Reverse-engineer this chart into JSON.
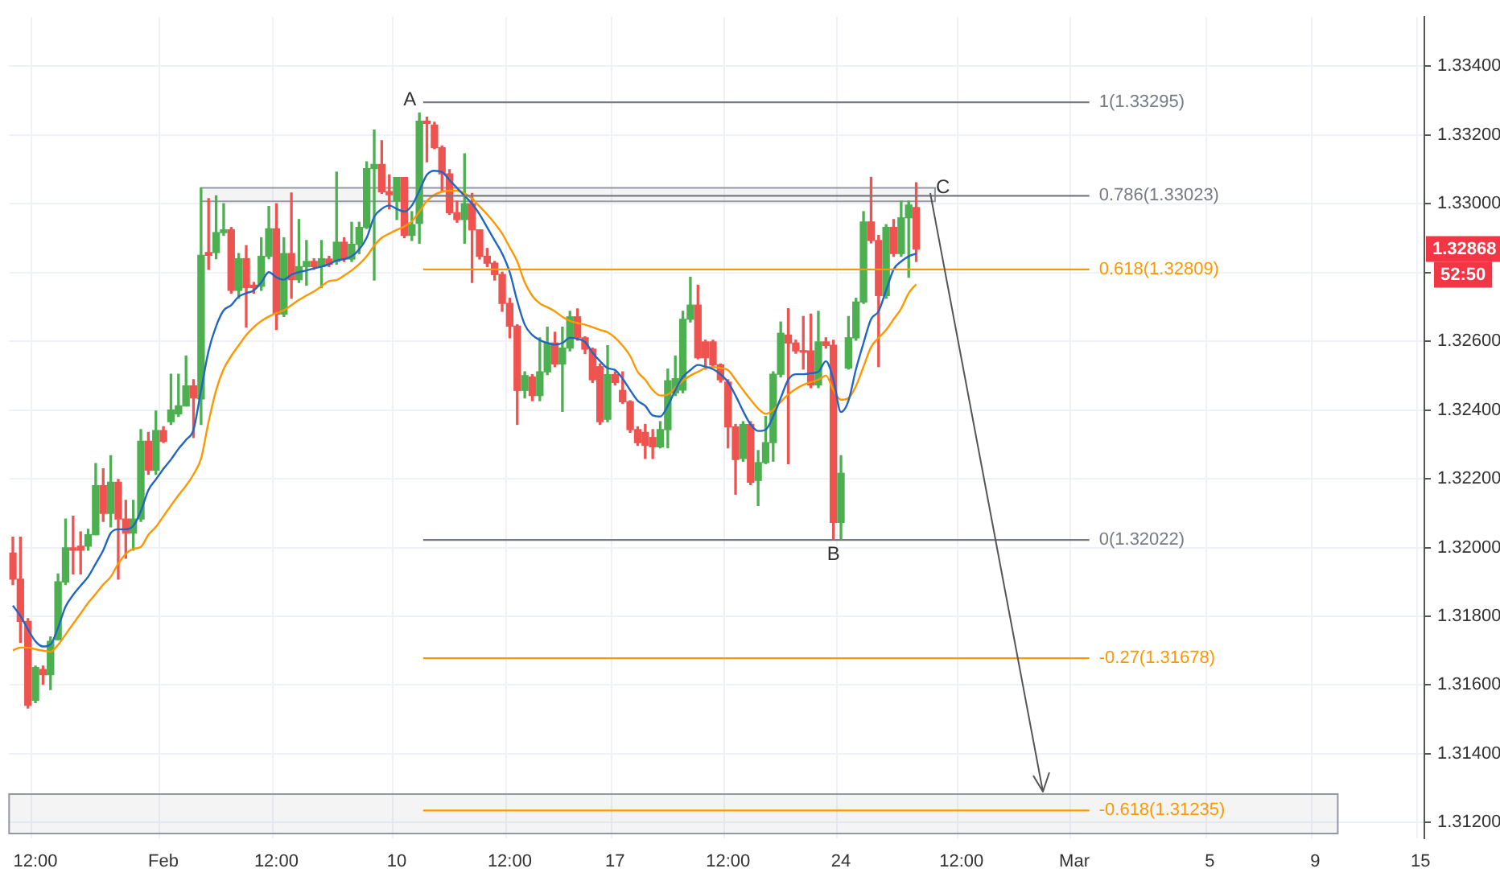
{
  "chart_data": {
    "type": "candlestick",
    "categories": [
      null,
      null,
      null,
      "12:00",
      null,
      null,
      null,
      null,
      null,
      null,
      null,
      null,
      null,
      null,
      null,
      null,
      null,
      null,
      null,
      null,
      "Feb",
      null,
      null,
      null,
      null,
      null,
      null,
      null,
      null,
      null,
      null,
      null,
      null,
      null,
      null,
      "12:00",
      null,
      null,
      null,
      null,
      null,
      null,
      null,
      null,
      null,
      null,
      null,
      null,
      null,
      null,
      null,
      "10",
      null,
      null,
      null,
      null,
      null,
      null,
      null,
      null,
      null,
      null,
      null,
      null,
      null,
      null,
      "12:00",
      null,
      null,
      null,
      null,
      null,
      null,
      null,
      null,
      null,
      null,
      null,
      null,
      null,
      "17",
      null,
      null,
      null,
      null,
      null,
      null,
      null,
      null,
      null,
      null,
      null,
      null,
      null,
      null,
      "12:00",
      null,
      null,
      null,
      null,
      null,
      null,
      null,
      null,
      null,
      null,
      null,
      null,
      null,
      null,
      "24",
      null,
      null,
      null,
      null,
      null,
      null,
      null,
      null,
      null,
      null,
      null,
      null,
      null,
      null,
      null,
      "12:00",
      null,
      null,
      null,
      null,
      null,
      null,
      null,
      null,
      null,
      null,
      null,
      null,
      null,
      null,
      "Mar",
      null,
      null,
      null,
      null,
      null,
      null,
      null,
      null,
      null,
      null,
      null,
      null,
      null,
      null,
      null,
      null,
      null,
      "5",
      null,
      null,
      null,
      null,
      null,
      null,
      null,
      null,
      null,
      null,
      null,
      null,
      null,
      "9",
      null,
      null,
      null,
      null,
      null,
      null,
      null,
      null,
      null,
      null,
      null,
      null,
      null,
      "15"
    ],
    "ohlc": [
      [
        1.31984,
        1.3203,
        1.31892,
        1.31908
      ],
      [
        1.31908,
        1.3203,
        1.31724,
        1.31785
      ],
      [
        1.31785,
        1.31793,
        1.31533,
        1.31541
      ],
      [
        1.31556,
        1.31655,
        1.31549,
        1.31651
      ],
      [
        1.31645,
        1.31655,
        1.31602,
        1.3163
      ],
      [
        1.3163,
        1.3174,
        1.31587,
        1.31727
      ],
      [
        1.31732,
        1.31923,
        1.31732,
        1.319
      ],
      [
        1.319,
        1.32083,
        1.31892,
        1.31999
      ],
      [
        1.31999,
        1.32091,
        1.31923,
        1.31992
      ],
      [
        1.32004,
        1.32045,
        1.31923,
        1.31992
      ],
      [
        1.32004,
        1.32053,
        1.31992,
        1.32037
      ],
      [
        1.32037,
        1.32244,
        1.32037,
        1.3218
      ],
      [
        1.3218,
        1.32229,
        1.32076,
        1.32099
      ],
      [
        1.32099,
        1.32267,
        1.3206,
        1.3219
      ],
      [
        1.3219,
        1.32198,
        1.31908,
        1.32083
      ],
      [
        1.32083,
        1.32137,
        1.31969,
        1.32042
      ],
      [
        1.32042,
        1.32137,
        1.31992,
        1.32083
      ],
      [
        1.32083,
        1.32343,
        1.32076,
        1.32309
      ],
      [
        1.32309,
        1.32335,
        1.32213,
        1.32225
      ],
      [
        1.32225,
        1.32397,
        1.32213,
        1.3234
      ],
      [
        1.3234,
        1.32351,
        1.32305,
        1.32309
      ],
      [
        1.32366,
        1.32504,
        1.32358,
        1.324
      ],
      [
        1.32389,
        1.32504,
        1.32381,
        1.32412
      ],
      [
        1.32412,
        1.32557,
        1.32412,
        1.3247
      ],
      [
        1.3247,
        1.32488,
        1.3232,
        1.32435
      ],
      [
        1.32432,
        1.33046,
        1.32358,
        1.3285
      ],
      [
        1.32858,
        1.33015,
        1.32809,
        1.3285
      ],
      [
        1.32858,
        1.33023,
        1.3284,
        1.32916
      ],
      [
        1.32916,
        1.33,
        1.32908,
        1.32924
      ],
      [
        1.32924,
        1.32931,
        1.3274,
        1.32748
      ],
      [
        1.32748,
        1.32855,
        1.32725,
        1.3284
      ],
      [
        1.3284,
        1.32878,
        1.32641,
        1.32756
      ],
      [
        1.32763,
        1.32771,
        1.3274,
        1.32756
      ],
      [
        1.3276,
        1.32901,
        1.32748,
        1.32847
      ],
      [
        1.32847,
        1.32992,
        1.3284,
        1.32927
      ],
      [
        1.32927,
        1.33,
        1.32634,
        1.32679
      ],
      [
        1.32679,
        1.32901,
        1.32672,
        1.32855
      ],
      [
        1.32855,
        1.33031,
        1.32725,
        1.32779
      ],
      [
        1.32779,
        1.32954,
        1.32771,
        1.32817
      ],
      [
        1.32817,
        1.32893,
        1.32763,
        1.32832
      ],
      [
        1.32832,
        1.3284,
        1.32809,
        1.32817
      ],
      [
        1.32817,
        1.32893,
        1.32756,
        1.3284
      ],
      [
        1.32839,
        1.32847,
        1.32817,
        1.32824
      ],
      [
        1.32832,
        1.33092,
        1.32824,
        1.32888
      ],
      [
        1.32888,
        1.32901,
        1.32832,
        1.32839
      ],
      [
        1.32839,
        1.32946,
        1.32832,
        1.32882
      ],
      [
        1.32882,
        1.32946,
        1.32855,
        1.32931
      ],
      [
        1.32931,
        1.33122,
        1.32928,
        1.33102
      ],
      [
        1.33102,
        1.33214,
        1.32778,
        1.33114
      ],
      [
        1.33114,
        1.33183,
        1.3303,
        1.33035
      ],
      [
        1.33035,
        1.33084,
        1.32985,
        1.33026
      ],
      [
        1.33008,
        1.33076,
        1.32954,
        1.33076
      ],
      [
        1.33076,
        1.33076,
        1.32901,
        1.32908
      ],
      [
        1.32908,
        1.32977,
        1.32893,
        1.32939
      ],
      [
        1.32943,
        1.33264,
        1.32885,
        1.3324
      ],
      [
        1.3324,
        1.33252,
        1.33122,
        1.33234
      ],
      [
        1.33229,
        1.33237,
        1.3316,
        1.33163
      ],
      [
        1.33163,
        1.33168,
        1.33038,
        1.33087
      ],
      [
        1.33087,
        1.33099,
        1.32969,
        1.32974
      ],
      [
        1.32974,
        1.33008,
        1.32946,
        1.32954
      ],
      [
        1.32954,
        1.33145,
        1.32885,
        1.33
      ],
      [
        1.33,
        1.3303,
        1.32771,
        1.32924
      ],
      [
        1.32924,
        1.32924,
        1.32839,
        1.32847
      ],
      [
        1.32847,
        1.3287,
        1.32817,
        1.32827
      ],
      [
        1.32827,
        1.32832,
        1.32778,
        1.32794
      ],
      [
        1.32794,
        1.32801,
        1.32687,
        1.3271
      ],
      [
        1.3271,
        1.32725,
        1.3261,
        1.32644
      ],
      [
        1.32644,
        1.32648,
        1.32358,
        1.32457
      ],
      [
        1.32457,
        1.32511,
        1.32435,
        1.325
      ],
      [
        1.32496,
        1.32503,
        1.32427,
        1.32442
      ],
      [
        1.32442,
        1.3261,
        1.32427,
        1.32511
      ],
      [
        1.32511,
        1.32641,
        1.32503,
        1.32595
      ],
      [
        1.32595,
        1.32626,
        1.32526,
        1.32534
      ],
      [
        1.32534,
        1.32641,
        1.32396,
        1.3258
      ],
      [
        1.3258,
        1.32687,
        1.32572,
        1.32671
      ],
      [
        1.32671,
        1.32694,
        1.32603,
        1.3261
      ],
      [
        1.3261,
        1.32613,
        1.32564,
        1.32577
      ],
      [
        1.32577,
        1.3258,
        1.3248,
        1.32488
      ],
      [
        1.32526,
        1.32534,
        1.32358,
        1.32366
      ],
      [
        1.32373,
        1.32587,
        1.32366,
        1.32503
      ],
      [
        1.32503,
        1.32511,
        1.32473,
        1.3248
      ],
      [
        1.32457,
        1.32511,
        1.32419,
        1.32424
      ],
      [
        1.32424,
        1.32427,
        1.32335,
        1.32343
      ],
      [
        1.32343,
        1.32351,
        1.32297,
        1.32305
      ],
      [
        1.32335,
        1.32358,
        1.32259,
        1.32297
      ],
      [
        1.3232,
        1.32343,
        1.32259,
        1.32293
      ],
      [
        1.32293,
        1.32366,
        1.3229,
        1.32343
      ],
      [
        1.32343,
        1.32519,
        1.3229,
        1.32485
      ],
      [
        1.3245,
        1.32557,
        1.32442,
        1.32491
      ],
      [
        1.32458,
        1.32687,
        1.3245,
        1.32664
      ],
      [
        1.32664,
        1.32786,
        1.32656,
        1.32705
      ],
      [
        1.32705,
        1.32763,
        1.32549,
        1.32552
      ],
      [
        1.32598,
        1.32603,
        1.32519,
        1.32552
      ],
      [
        1.32598,
        1.32603,
        1.32526,
        1.32531
      ],
      [
        1.32531,
        1.32534,
        1.32481,
        1.32488
      ],
      [
        1.32481,
        1.32488,
        1.3229,
        1.32351
      ],
      [
        1.32351,
        1.32358,
        1.32155,
        1.32256
      ],
      [
        1.32259,
        1.32366,
        1.32251,
        1.32358
      ],
      [
        1.32358,
        1.32366,
        1.32183,
        1.3219
      ],
      [
        1.32195,
        1.32282,
        1.32122,
        1.32247
      ],
      [
        1.32247,
        1.32381,
        1.32244,
        1.32305
      ],
      [
        1.32305,
        1.32511,
        1.32251,
        1.32504
      ],
      [
        1.32504,
        1.32656,
        1.32496,
        1.32623
      ],
      [
        1.32618,
        1.32695,
        1.32244,
        1.32595
      ],
      [
        1.32595,
        1.32603,
        1.32565,
        1.32572
      ],
      [
        1.32572,
        1.32672,
        1.32519,
        1.32568
      ],
      [
        1.32572,
        1.32679,
        1.32465,
        1.32473
      ],
      [
        1.32473,
        1.32687,
        1.32465,
        1.32598
      ],
      [
        1.32598,
        1.3261,
        1.3258,
        1.32588
      ],
      [
        1.32588,
        1.32603,
        1.32022,
        1.32073
      ],
      [
        1.32073,
        1.32267,
        1.32022,
        1.32216
      ],
      [
        1.32522,
        1.32672,
        1.32519,
        1.3261
      ],
      [
        1.3261,
        1.32725,
        1.32603,
        1.32714
      ],
      [
        1.32714,
        1.32977,
        1.3271,
        1.32947
      ],
      [
        1.32947,
        1.33077,
        1.32886,
        1.32893
      ],
      [
        1.32893,
        1.32908,
        1.32526,
        1.32733
      ],
      [
        1.32733,
        1.32939,
        1.32725,
        1.32931
      ],
      [
        1.32931,
        1.32954,
        1.32847,
        1.32855
      ],
      [
        1.32855,
        1.33008,
        1.32847,
        1.32959
      ],
      [
        1.32959,
        1.33008,
        1.32786,
        1.32996
      ],
      [
        1.32989,
        1.33061,
        1.32832,
        1.32868
      ],
      null,
      null,
      null,
      null,
      null,
      null,
      null,
      null,
      null,
      null,
      null,
      null,
      null,
      null,
      null,
      null,
      null,
      null,
      null,
      null,
      null,
      null,
      null,
      null,
      null,
      null,
      null,
      null,
      null,
      null,
      null,
      null,
      null,
      null,
      null,
      null,
      null,
      null,
      null,
      null,
      null,
      null,
      null,
      null,
      null,
      null,
      null,
      null,
      null,
      null,
      null,
      null,
      null,
      null,
      null,
      null,
      null,
      null,
      null,
      null,
      null,
      null,
      null,
      null,
      null,
      null,
      null
    ],
    "colors": [
      "#ef5350",
      "#ef5350",
      "#ef5350",
      "#4caf50",
      "#ef5350",
      "#4caf50",
      "#4caf50",
      "#4caf50",
      "#ef5350",
      "#ef5350",
      "#4caf50",
      "#4caf50",
      "#ef5350",
      "#4caf50",
      "#ef5350",
      "#ef5350",
      "#4caf50",
      "#4caf50",
      "#ef5350",
      "#4caf50",
      "#ef5350",
      "#4caf50",
      "#4caf50",
      "#4caf50",
      "#ef5350",
      "#4caf50",
      "#ef5350",
      "#4caf50",
      "#4caf50",
      "#ef5350",
      "#4caf50",
      "#ef5350",
      "#ef5350",
      "#4caf50",
      "#4caf50",
      "#ef5350",
      "#4caf50",
      "#ef5350",
      "#4caf50",
      "#4caf50",
      "#ef5350",
      "#4caf50",
      "#ef5350",
      "#4caf50",
      "#ef5350",
      "#4caf50",
      "#4caf50",
      "#4caf50",
      "#4caf50",
      "#ef5350",
      "#ef5350",
      "#4caf50",
      "#ef5350",
      "#4caf50",
      "#4caf50",
      "#ef5350",
      "#ef5350",
      "#ef5350",
      "#ef5350",
      "#ef5350",
      "#4caf50",
      "#ef5350",
      "#ef5350",
      "#ef5350",
      "#ef5350",
      "#ef5350",
      "#ef5350",
      "#ef5350",
      "#4caf50",
      "#ef5350",
      "#4caf50",
      "#4caf50",
      "#ef5350",
      "#4caf50",
      "#4caf50",
      "#ef5350",
      "#ef5350",
      "#ef5350",
      "#ef5350",
      "#4caf50",
      "#ef5350",
      "#ef5350",
      "#ef5350",
      "#ef5350",
      "#ef5350",
      "#ef5350",
      "#4caf50",
      "#4caf50",
      "#4caf50",
      "#4caf50",
      "#4caf50",
      "#ef5350",
      "#ef5350",
      "#ef5350",
      "#ef5350",
      "#ef5350",
      "#ef5350",
      "#4caf50",
      "#ef5350",
      "#4caf50",
      "#4caf50",
      "#4caf50",
      "#4caf50",
      "#ef5350",
      "#ef5350",
      "#ef5350",
      "#ef5350",
      "#4caf50",
      "#ef5350",
      "#ef5350",
      "#4caf50",
      "#4caf50",
      "#4caf50",
      "#4caf50",
      "#ef5350",
      "#ef5350",
      "#4caf50",
      "#ef5350",
      "#4caf50",
      "#4caf50",
      "#ef5350",
      null,
      null,
      null,
      null,
      null,
      null,
      null,
      null,
      null,
      null,
      null,
      null,
      null,
      null,
      null,
      null,
      null,
      null,
      null,
      null,
      null,
      null,
      null,
      null,
      null,
      null,
      null,
      null,
      null,
      null,
      null,
      null,
      null,
      null,
      null,
      null,
      null,
      null,
      null,
      null,
      null,
      null,
      null,
      null,
      null,
      null,
      null,
      null,
      null,
      null,
      null,
      null,
      null,
      null,
      null,
      null,
      null,
      null,
      null,
      null,
      null,
      null,
      null,
      null,
      null,
      null,
      null
    ],
    "series": [
      {
        "type": "line",
        "color": "#2166c4",
        "values": [
          1.31831,
          1.31801,
          1.31762,
          1.31727,
          1.31712,
          1.31718,
          1.31767,
          1.31828,
          1.31862,
          1.31889,
          1.31915,
          1.31953,
          1.31992,
          1.32042,
          1.32053,
          1.32053,
          1.32063,
          1.32106,
          1.32167,
          1.32198,
          1.32229,
          1.32256,
          1.32287,
          1.32313,
          1.32343,
          1.32458,
          1.32572,
          1.32644,
          1.3269,
          1.32705,
          1.3273,
          1.3274,
          1.32748,
          1.32771,
          1.32801,
          1.32786,
          1.32779,
          1.32794,
          1.32801,
          1.32806,
          1.32812,
          1.32817,
          1.32824,
          1.32835,
          1.32839,
          1.32847,
          1.32867,
          1.32901,
          1.32962,
          1.32985,
          1.32995,
          1.32985,
          1.32977,
          1.32995,
          1.33038,
          1.33084,
          1.33096,
          1.33092,
          1.33069,
          1.33046,
          1.33023,
          1.33,
          1.32969,
          1.32931,
          1.32893,
          1.32855,
          1.32801,
          1.32717,
          1.32648,
          1.32618,
          1.32603,
          1.32595,
          1.3259,
          1.32595,
          1.3261,
          1.32607,
          1.32598,
          1.32567,
          1.32542,
          1.32522,
          1.32516,
          1.32491,
          1.32458,
          1.32427,
          1.32412,
          1.32384,
          1.32381,
          1.32412,
          1.32458,
          1.32496,
          1.32516,
          1.32531,
          1.32526,
          1.32519,
          1.32504,
          1.32481,
          1.32442,
          1.32397,
          1.32358,
          1.32339,
          1.32343,
          1.32381,
          1.32435,
          1.32488,
          1.32504,
          1.32504,
          1.32507,
          1.32511,
          1.32542,
          1.32488,
          1.32394,
          1.32427,
          1.32519,
          1.32595,
          1.32664,
          1.32687,
          1.32748,
          1.32809,
          1.32832,
          1.32847,
          1.32855,
          null,
          null,
          null,
          null,
          null,
          null,
          null,
          null,
          null,
          null,
          null,
          null,
          null,
          null,
          null,
          null,
          null,
          null,
          null,
          null,
          null,
          null,
          null,
          null,
          null,
          null,
          null,
          null,
          null,
          null,
          null,
          null,
          null,
          null,
          null,
          null,
          null,
          null,
          null,
          null,
          null,
          null,
          null,
          null,
          null,
          null,
          null,
          null,
          null,
          null,
          null,
          null,
          null,
          null,
          null,
          null,
          null,
          null,
          null,
          null,
          null,
          null,
          null,
          null,
          null,
          null,
          null
        ]
      },
      {
        "type": "line",
        "color": "#ff9800",
        "values": [
          1.31701,
          1.31709,
          1.31709,
          1.31704,
          1.317,
          1.31697,
          1.31717,
          1.31747,
          1.31778,
          1.31808,
          1.31839,
          1.31865,
          1.31892,
          1.31915,
          1.31953,
          1.31981,
          1.31996,
          1.32002,
          1.32037,
          1.3206,
          1.32091,
          1.32122,
          1.32152,
          1.3218,
          1.32213,
          1.32259,
          1.32366,
          1.32458,
          1.32519,
          1.32557,
          1.32588,
          1.32618,
          1.32641,
          1.32659,
          1.32672,
          1.32682,
          1.3269,
          1.32705,
          1.3272,
          1.32733,
          1.32745,
          1.3276,
          1.32775,
          1.32778,
          1.32791,
          1.32806,
          1.32824,
          1.32847,
          1.32878,
          1.32901,
          1.32913,
          1.32924,
          1.32934,
          1.32949,
          1.32977,
          1.33008,
          1.33026,
          1.33035,
          1.33038,
          1.33038,
          1.3303,
          1.33015,
          1.32992,
          1.32969,
          1.32943,
          1.32913,
          1.32873,
          1.32832,
          1.32771,
          1.32732,
          1.3271,
          1.32699,
          1.32687,
          1.32671,
          1.32659,
          1.32653,
          1.32648,
          1.32641,
          1.32633,
          1.32626,
          1.3261,
          1.32587,
          1.32557,
          1.32511,
          1.32488,
          1.32458,
          1.32442,
          1.32445,
          1.32465,
          1.32485,
          1.325,
          1.32511,
          1.32522,
          1.32525,
          1.32522,
          1.32516,
          1.32488,
          1.32458,
          1.3243,
          1.32404,
          1.32389,
          1.324,
          1.32424,
          1.32445,
          1.32461,
          1.32473,
          1.32481,
          1.32488,
          1.325,
          1.32458,
          1.3243,
          1.32435,
          1.3247,
          1.32526,
          1.32583,
          1.3261,
          1.32633,
          1.32664,
          1.32695,
          1.3274,
          1.32766,
          null,
          null,
          null,
          null,
          null,
          null,
          null,
          null,
          null,
          null,
          null,
          null,
          null,
          null,
          null,
          null,
          null,
          null,
          null,
          null,
          null,
          null,
          null,
          null,
          null,
          null,
          null,
          null,
          null,
          null,
          null,
          null,
          null,
          null,
          null,
          null,
          null,
          null,
          null,
          null,
          null,
          null,
          null,
          null,
          null,
          null,
          null,
          null,
          null,
          null,
          null,
          null,
          null,
          null,
          null,
          null,
          null,
          null,
          null,
          null,
          null,
          null,
          null,
          null,
          null,
          null,
          null
        ]
      }
    ],
    "ylim": [
      1.31154,
      1.33543
    ],
    "yticks": [
      {
        "value": 1.312,
        "label": "1.31200"
      },
      {
        "value": 1.314,
        "label": "1.31400"
      },
      {
        "value": 1.316,
        "label": "1.31600"
      },
      {
        "value": 1.318,
        "label": "1.31800"
      },
      {
        "value": 1.32,
        "label": "1.32000"
      },
      {
        "value": 1.322,
        "label": "1.32200"
      },
      {
        "value": 1.324,
        "label": "1.32400"
      },
      {
        "value": 1.326,
        "label": "1.32600"
      },
      {
        "value": 1.328,
        "label": null
      },
      {
        "value": 1.33,
        "label": "1.33000"
      },
      {
        "value": 1.332,
        "label": "1.33200"
      },
      {
        "value": 1.334,
        "label": "1.33400"
      }
    ],
    "grid": true,
    "ref_lines": [
      {
        "axis": "y",
        "value": 1.33295,
        "label": "1(1.33295)",
        "color": "#787b86"
      },
      {
        "axis": "y",
        "value": 1.33023,
        "label": "0.786(1.33023)",
        "color": "#787b86"
      },
      {
        "axis": "y",
        "value": 1.32809,
        "label": "0.618(1.32809)",
        "color": "#ff9800"
      },
      {
        "axis": "y",
        "value": 1.32022,
        "label": "0(1.32022)",
        "color": "#787b86"
      },
      {
        "axis": "y",
        "value": 1.31678,
        "label": "-0.27(1.31678)",
        "color": "#ff9800"
      },
      {
        "axis": "y",
        "value": 1.31235,
        "label": "-0.618(1.31235)",
        "color": "#ff9800"
      }
    ],
    "bands": [
      {
        "axis": "y",
        "from": 1.33007,
        "to": 1.33046,
        "color": "#9598a1"
      },
      {
        "axis": "y",
        "from": 1.31168,
        "to": 1.31283,
        "color": "#9598a1"
      }
    ],
    "annotations": [
      "A",
      {
        "text": "B",
        "y": 1.32022
      },
      {
        "text": "C",
        "y": 1.33023
      },
      "1.32868",
      "52:50"
    ]
  }
}
